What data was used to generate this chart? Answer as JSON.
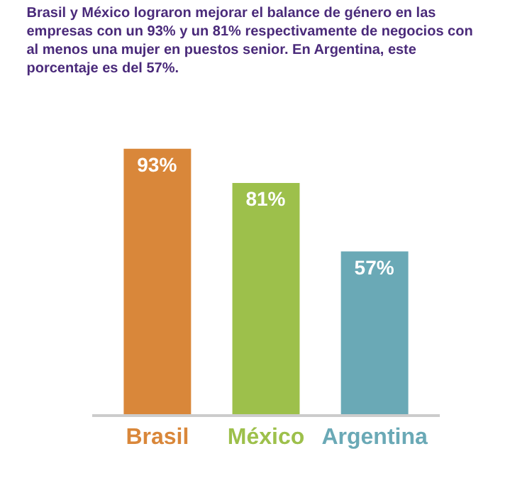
{
  "chart_data": {
    "type": "bar",
    "title": "Brasil y México lograron mejorar el balance de género en las empresas con un 93% y un 81% respectivamente de negocios con al menos una mujer en puestos senior. En Argentina, este porcentaje es del 57%.",
    "categories": [
      "Brasil",
      "México",
      "Argentina"
    ],
    "values": [
      93,
      81,
      57
    ],
    "colors": [
      "#d9873a",
      "#9dc04b",
      "#6aa9b6"
    ],
    "value_labels": [
      "93%",
      "81%",
      "57%"
    ]
  }
}
